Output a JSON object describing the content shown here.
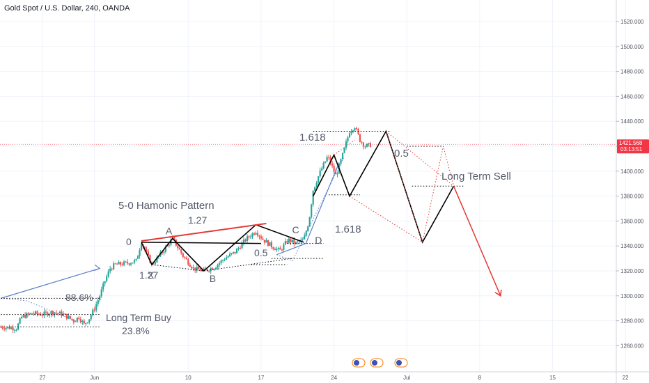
{
  "header": {
    "title": "Gold Spot / U.S. Dollar, 240, OANDA"
  },
  "colors": {
    "up": "#26a69a",
    "down": "#ef5350",
    "pattern": "#000000",
    "sell_projection": "#e53935",
    "trend": "#5b7fc7",
    "price_badge": "#f23645",
    "grid": "#f0f3fa",
    "annotation_text": "#555a6a"
  },
  "chart_data": {
    "type": "candlestick",
    "title": "Gold Spot / U.S. Dollar, 240, OANDA",
    "x_tick_labels": [
      "27",
      "Jun",
      "10",
      "17",
      "24",
      "Jul",
      "8",
      "15",
      "22"
    ],
    "x_ticks": [
      {
        "label": "27",
        "day": 27
      },
      {
        "label": "Jun",
        "day": 32
      },
      {
        "label": "10",
        "day": 41
      },
      {
        "label": "17",
        "day": 48
      },
      {
        "label": "24",
        "day": 55
      },
      {
        "label": "Jul",
        "day": 62
      },
      {
        "label": "8",
        "day": 69
      },
      {
        "label": "15",
        "day": 76
      },
      {
        "label": "22",
        "day": 83
      }
    ],
    "y_ticks": [
      "1520.000",
      "1500.000",
      "1480.000",
      "1460.000",
      "1440.000",
      "1420.000",
      "1400.000",
      "1380.000",
      "1360.000",
      "1340.000",
      "1320.000",
      "1300.000",
      "1280.000",
      "1260.000"
    ],
    "ylim": [
      1250,
      1530
    ],
    "xlim": [
      23,
      85
    ],
    "grid": true,
    "current_price": "1421.568",
    "countdown": "03:13:51",
    "price_path": [
      [
        23.0,
        1275
      ],
      [
        24.5,
        1274
      ],
      [
        25.0,
        1283
      ],
      [
        26.0,
        1286
      ],
      [
        27.0,
        1285
      ],
      [
        28.0,
        1287
      ],
      [
        29.0,
        1285
      ],
      [
        30.0,
        1280
      ],
      [
        30.5,
        1283
      ],
      [
        31.0,
        1277
      ],
      [
        31.5,
        1282
      ],
      [
        32.0,
        1290
      ],
      [
        32.5,
        1300
      ],
      [
        33.0,
        1312
      ],
      [
        33.5,
        1322
      ],
      [
        34.0,
        1325
      ],
      [
        35.0,
        1326
      ],
      [
        36.0,
        1328
      ],
      [
        36.5,
        1343
      ],
      [
        37.5,
        1325
      ],
      [
        38.5,
        1335
      ],
      [
        39.5,
        1346
      ],
      [
        40.5,
        1332
      ],
      [
        41.5,
        1322
      ],
      [
        42.5,
        1320
      ],
      [
        43.5,
        1323
      ],
      [
        44.5,
        1330
      ],
      [
        45.5,
        1335
      ],
      [
        46.5,
        1345
      ],
      [
        47.5,
        1352
      ],
      [
        48.2,
        1345
      ],
      [
        49.0,
        1340
      ],
      [
        49.8,
        1336
      ],
      [
        50.6,
        1345
      ],
      [
        51.3,
        1342
      ],
      [
        52.1,
        1345
      ],
      [
        52.6,
        1360
      ],
      [
        53.0,
        1385
      ],
      [
        53.6,
        1398
      ],
      [
        54.4,
        1412
      ],
      [
        55.2,
        1396
      ],
      [
        55.8,
        1412
      ],
      [
        56.5,
        1432
      ],
      [
        57.0,
        1436
      ],
      [
        57.5,
        1425
      ],
      [
        58.0,
        1420
      ],
      [
        58.5,
        1421
      ]
    ],
    "pattern_points": [
      {
        "label": "0",
        "day": 36.5,
        "price": 1343
      },
      {
        "label": "X",
        "day": 37.5,
        "price": 1325
      },
      {
        "label": "A",
        "day": 39.5,
        "price": 1346
      },
      {
        "label": "B",
        "day": 42.5,
        "price": 1320
      },
      {
        "label": "C",
        "day": 47.5,
        "price": 1357
      },
      {
        "label": "D",
        "day": 52.1,
        "price": 1343
      }
    ],
    "annotations": [
      {
        "text": "5-0 Hamonic Pattern"
      },
      {
        "text": "1.27"
      },
      {
        "text": "1.27"
      },
      {
        "text": "0.5"
      },
      {
        "text": "88.6%"
      },
      {
        "text": "Long Term Buy"
      },
      {
        "text": "23.8%"
      },
      {
        "text": "1.618"
      },
      {
        "text": "1.618"
      },
      {
        "text": "0.5"
      },
      {
        "text": "Long Term Sell"
      }
    ],
    "projection_path": [
      [
        53.0,
        1380
      ],
      [
        55.0,
        1413
      ],
      [
        56.5,
        1380
      ],
      [
        60.0,
        1432
      ],
      [
        63.5,
        1343
      ],
      [
        66.5,
        1388
      ]
    ],
    "sell_arrow": [
      [
        66.5,
        1388
      ],
      [
        71.0,
        1300
      ]
    ]
  },
  "bottom_icons": [
    "flag-icon-2",
    "flag-icon-5",
    "flag-icon-2"
  ]
}
